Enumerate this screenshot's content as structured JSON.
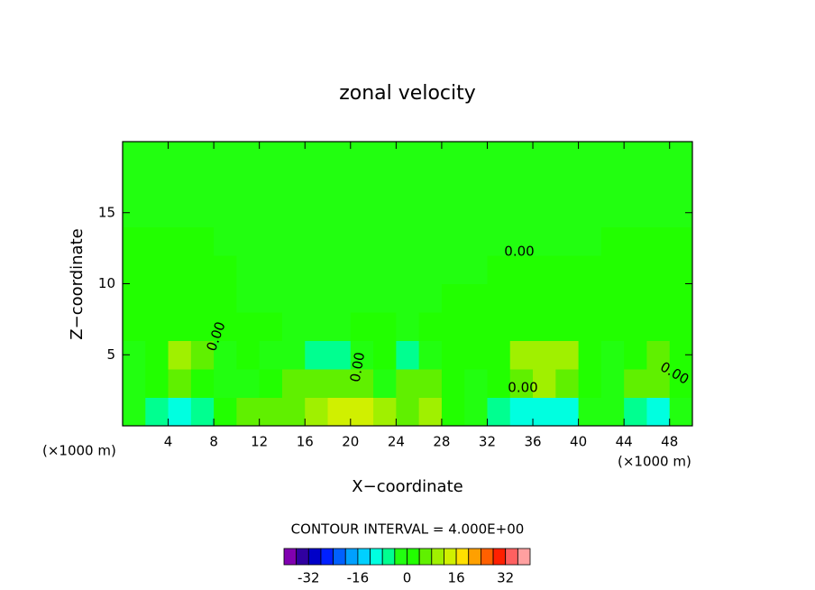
{
  "chart_data": {
    "type": "contour",
    "title": "zonal velocity",
    "xlabel": "X−coordinate",
    "ylabel": "Z−coordinate",
    "x_unit_left": "(×1000 m)",
    "x_unit_right": "(×1000 m)",
    "contour_interval": "CONTOUR INTERVAL = 4.000E+00",
    "contour_labels": [
      "0.00",
      "0.00",
      "0.00",
      "0.00",
      "0.00"
    ],
    "xlim": [
      0,
      50
    ],
    "ylim": [
      0,
      20
    ],
    "xticks": [
      4,
      8,
      12,
      16,
      20,
      24,
      28,
      32,
      36,
      40,
      44,
      48
    ],
    "yticks": [
      5,
      10,
      15
    ],
    "x_edges": [
      0,
      2,
      4,
      6,
      8,
      10,
      12,
      14,
      16,
      18,
      20,
      22,
      24,
      26,
      28,
      30,
      32,
      34,
      36,
      38,
      40,
      42,
      44,
      46,
      48,
      50
    ],
    "z_edges": [
      0,
      2,
      4,
      6,
      8,
      10,
      12,
      14,
      16,
      18,
      20
    ],
    "z": [
      [
        -2,
        -6,
        -10,
        -8,
        2,
        6,
        4,
        6,
        10,
        14,
        14,
        8,
        6,
        10,
        2,
        -2,
        -6,
        -10,
        -12,
        -10,
        -2,
        -4,
        -8,
        -10,
        -4
      ],
      [
        -4,
        2,
        6,
        2,
        -2,
        -4,
        2,
        4,
        6,
        6,
        4,
        -2,
        4,
        6,
        2,
        -2,
        2,
        6,
        8,
        6,
        2,
        -2,
        4,
        6,
        2
      ],
      [
        -2,
        2,
        8,
        4,
        -2,
        2,
        -2,
        -2,
        -6,
        -8,
        -4,
        2,
        -6,
        -2,
        2,
        2,
        2,
        8,
        10,
        8,
        2,
        -2,
        2,
        4,
        2
      ],
      [
        2,
        2,
        2,
        2,
        2,
        2,
        2,
        -2,
        -4,
        -4,
        2,
        2,
        -2,
        2,
        2,
        2,
        2,
        2,
        2,
        2,
        2,
        2,
        2,
        2,
        2
      ],
      [
        2,
        2,
        2,
        2,
        2,
        -2,
        -2,
        -2,
        -2,
        -2,
        -2,
        -2,
        -2,
        -2,
        2,
        2,
        2,
        2,
        2,
        2,
        2,
        2,
        2,
        2,
        2
      ],
      [
        2,
        2,
        2,
        2,
        2,
        -2,
        -2,
        -2,
        -2,
        -2,
        -2,
        -2,
        -2,
        -2,
        -2,
        -2,
        2,
        2,
        2,
        2,
        2,
        2,
        2,
        2,
        2
      ],
      [
        2,
        2,
        2,
        2,
        -2,
        -2,
        -2,
        -2,
        -2,
        -2,
        -2,
        -2,
        -2,
        -2,
        -2,
        -2,
        -2,
        -2,
        -2,
        -2,
        -2,
        2,
        2,
        2,
        2
      ],
      [
        -2,
        -2,
        -2,
        -2,
        -2,
        -2,
        -2,
        -2,
        -2,
        -2,
        -2,
        -2,
        -2,
        -2,
        -2,
        -2,
        -2,
        -2,
        -2,
        -2,
        -2,
        -2,
        -2,
        -2,
        -2
      ],
      [
        -2,
        -2,
        -2,
        -2,
        -2,
        -2,
        -2,
        -2,
        -2,
        -2,
        -2,
        -2,
        -2,
        -2,
        -2,
        -2,
        -2,
        -2,
        -2,
        -2,
        -2,
        -2,
        -2,
        -2,
        -2
      ],
      [
        -2,
        -2,
        -2,
        -2,
        -2,
        -2,
        -2,
        -2,
        -2,
        -2,
        -2,
        -2,
        -2,
        -2,
        -2,
        -2,
        -2,
        -2,
        -2,
        -2,
        -2,
        -2,
        -2,
        -2,
        -2
      ]
    ],
    "levels": [
      -40,
      -36,
      -32,
      -28,
      -24,
      -20,
      -16,
      -12,
      -8,
      -4,
      0,
      4,
      8,
      12,
      16,
      20,
      24,
      28,
      32,
      36,
      40
    ],
    "colors": [
      "#8000b0",
      "#3000a0",
      "#0000c8",
      "#0020ff",
      "#0060ff",
      "#00a0ff",
      "#00d0ff",
      "#00ffe0",
      "#00ff90",
      "#22ff10",
      "#22ff00",
      "#60f000",
      "#a0f000",
      "#d0f000",
      "#ffe000",
      "#ffa000",
      "#ff6000",
      "#ff2000",
      "#ff6060",
      "#ffa0a0"
    ],
    "colorbar_ticks": [
      -32,
      -16,
      0,
      16,
      32
    ]
  }
}
